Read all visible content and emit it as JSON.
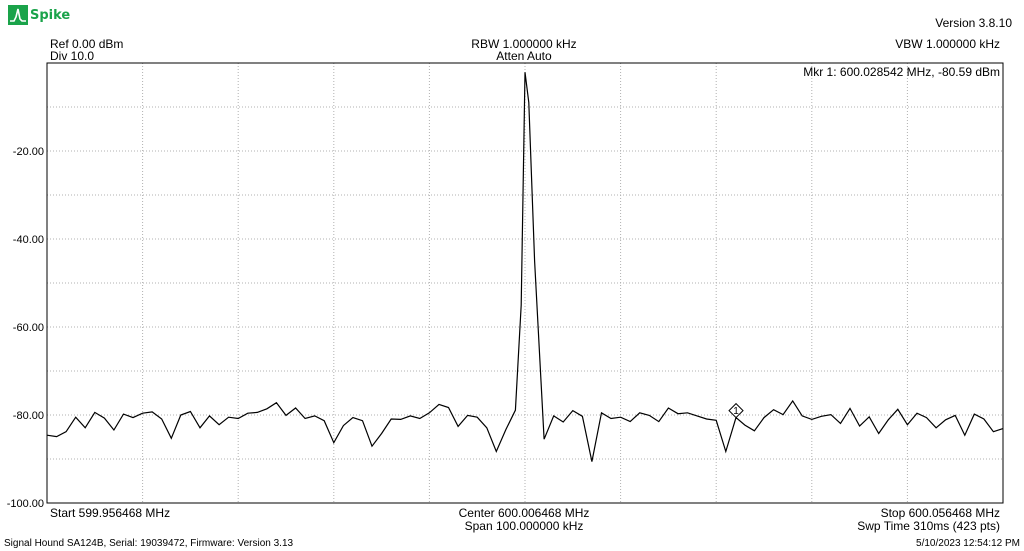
{
  "app": {
    "logo_text": "Spike",
    "version": "Version 3.8.10"
  },
  "header": {
    "ref": "Ref 0.00 dBm",
    "div": "Div 10.0",
    "rbw": "RBW 1.000000 kHz",
    "atten": "Atten Auto",
    "vbw": "VBW 1.000000 kHz"
  },
  "marker": {
    "readout": "Mkr 1: 600.028542 MHz, -80.59 dBm",
    "label": "1"
  },
  "footer": {
    "start": "Start 599.956468 MHz",
    "center": "Center 600.006468 MHz",
    "span": "Span 100.000000 kHz",
    "stop": "Stop 600.056468 MHz",
    "sweep": "Swp Time 310ms (423 pts)",
    "device": "Signal Hound SA124B, Serial: 19039472, Firmware: Version 3.13",
    "timestamp": "5/10/2023 12:54:12 PM"
  },
  "colors": {
    "brand": "#1aa34a",
    "trace": "#000000",
    "grid": "#b0b0b0",
    "frame": "#000000"
  },
  "chart_data": {
    "type": "line",
    "xlabel": "",
    "ylabel": "",
    "xlim": [
      599.956468,
      600.056468
    ],
    "ylim": [
      -100,
      0
    ],
    "y_ticks": [
      -20,
      -40,
      -60,
      -80,
      -100
    ],
    "y_tick_labels": [
      "-20.00",
      "-40.00",
      "-60.00",
      "-80.00",
      "-100.00"
    ],
    "grid": true,
    "marker": {
      "x": 600.028542,
      "y": -80.59,
      "label": "1"
    },
    "series": [
      {
        "x": [
          599.956468,
          599.957468,
          599.958468,
          599.959468,
          599.960468,
          599.961468,
          599.962468,
          599.963468,
          599.964468,
          599.965468,
          599.966468,
          599.967468,
          599.968468,
          599.969468,
          599.970468,
          599.971468,
          599.972468,
          599.973468,
          599.974468,
          599.975468,
          599.976468,
          599.977468,
          599.978468,
          599.979468,
          599.980468,
          599.981468,
          599.982468,
          599.983468,
          599.984468,
          599.985468,
          599.986468,
          599.987468,
          599.988468,
          599.989468,
          599.990468,
          599.991468,
          599.992468,
          599.993468,
          599.994468,
          599.995468,
          599.996468,
          599.997468,
          599.998468,
          599.999468,
          600.000468,
          600.001468,
          600.002468,
          600.003468,
          600.004468,
          600.005468,
          600.006068,
          600.006468,
          600.006868,
          600.007468,
          600.008468,
          600.009468,
          600.010468,
          600.011468,
          600.012468,
          600.013468,
          600.014468,
          600.015468,
          600.016468,
          600.017468,
          600.018468,
          600.019468,
          600.020468,
          600.021468,
          600.022468,
          600.023468,
          600.024468,
          600.025468,
          600.026468,
          600.027468,
          600.028542,
          600.029468,
          600.030468,
          600.031468,
          600.032468,
          600.033468,
          600.034468,
          600.035468,
          600.036468,
          600.037468,
          600.038468,
          600.039468,
          600.040468,
          600.041468,
          600.042468,
          600.043468,
          600.044468,
          600.045468,
          600.046468,
          600.047468,
          600.048468,
          600.049468,
          600.050468,
          600.051468,
          600.052468,
          600.053468,
          600.054468,
          600.055468,
          600.056468
        ],
        "values": [
          -84.6,
          -84.9,
          -83.8,
          -80.5,
          -82.9,
          -79.4,
          -80.7,
          -83.4,
          -79.8,
          -80.6,
          -79.6,
          -79.3,
          -80.9,
          -85.3,
          -80.0,
          -79.2,
          -82.9,
          -80.2,
          -82.2,
          -80.5,
          -80.8,
          -79.6,
          -79.4,
          -78.6,
          -77.2,
          -80.1,
          -78.4,
          -80.8,
          -80.2,
          -81.3,
          -86.3,
          -82.4,
          -80.6,
          -81.3,
          -87.1,
          -84.2,
          -80.9,
          -81.0,
          -80.2,
          -80.8,
          -79.5,
          -77.6,
          -78.3,
          -82.6,
          -80.1,
          -80.5,
          -82.9,
          -88.3,
          -83.3,
          -78.9,
          -55.0,
          -2.1,
          -9.0,
          -45.0,
          -85.5,
          -80.2,
          -81.6,
          -79.0,
          -80.3,
          -90.6,
          -79.5,
          -80.8,
          -80.5,
          -81.5,
          -79.5,
          -80.1,
          -81.5,
          -78.4,
          -79.7,
          -79.5,
          -80.2,
          -80.9,
          -81.2,
          -88.3,
          -80.59,
          -82.3,
          -83.6,
          -80.6,
          -78.8,
          -79.9,
          -76.8,
          -80.2,
          -81.0,
          -80.3,
          -79.9,
          -81.9,
          -78.5,
          -82.5,
          -80.4,
          -84.2,
          -81.1,
          -78.7,
          -82.2,
          -79.6,
          -80.6,
          -82.9,
          -81.1,
          -80.1,
          -84.6,
          -79.8,
          -80.9,
          -83.8,
          -83.1
        ]
      }
    ]
  }
}
